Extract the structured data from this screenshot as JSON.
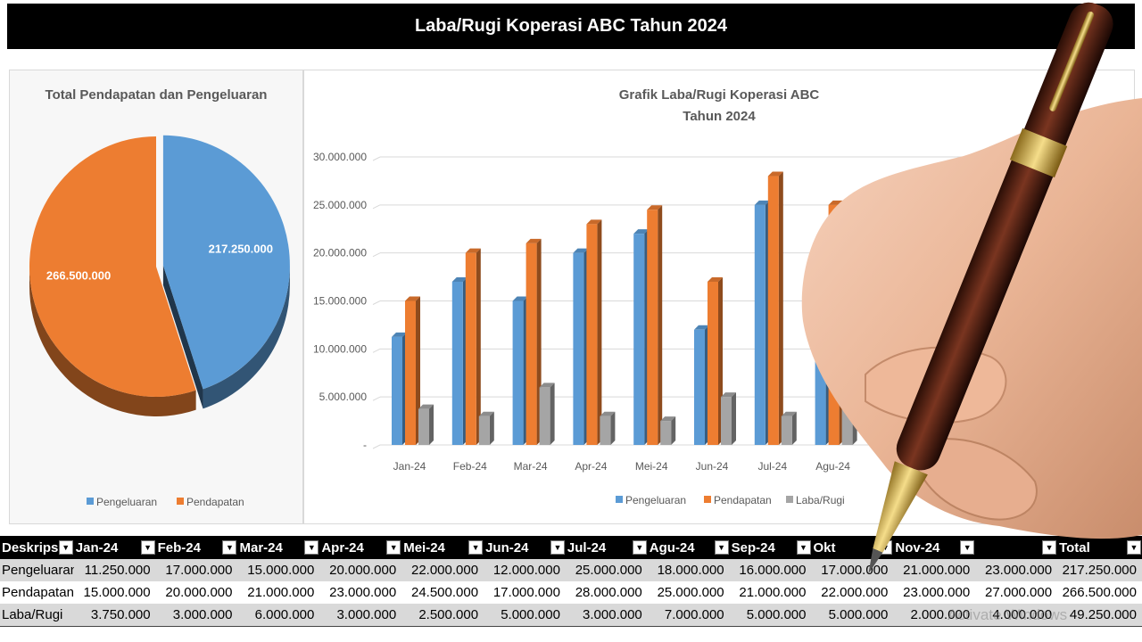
{
  "page_title": "Laba/Rugi Koperasi ABC Tahun 2024",
  "colors": {
    "pengeluaran": "#5b9bd5",
    "pendapatan": "#ed7d31",
    "laba_rugi": "#a5a5a5"
  },
  "chart_data": [
    {
      "type": "pie",
      "title": "Total Pendapatan dan Pengeluaran",
      "labels": [
        "Pengeluaran",
        "Pendapatan"
      ],
      "values": [
        217250000,
        266500000
      ],
      "data_labels": [
        "217.250.000",
        "266.500.000"
      ],
      "legend": "bottom",
      "style": "3d"
    },
    {
      "type": "bar",
      "title": "Grafik Laba/Rugi Koperasi ABC",
      "subtitle": "Tahun 2024",
      "categories": [
        "Jan-24",
        "Feb-24",
        "Mar-24",
        "Apr-24",
        "Mei-24",
        "Jun-24",
        "Jul-24",
        "Agu-24"
      ],
      "series": [
        {
          "name": "Pengeluaran",
          "values": [
            11250000,
            17000000,
            15000000,
            20000000,
            22000000,
            12000000,
            25000000,
            18000000
          ]
        },
        {
          "name": "Pendapatan",
          "values": [
            15000000,
            20000000,
            21000000,
            23000000,
            24500000,
            17000000,
            28000000,
            25000000
          ]
        },
        {
          "name": "Laba/Rugi",
          "values": [
            3750000,
            3000000,
            6000000,
            3000000,
            2500000,
            5000000,
            3000000,
            7000000
          ]
        }
      ],
      "ylim": [
        0,
        30000000
      ],
      "yticks": [
        "30.000.000",
        "25.000.000",
        "20.000.000",
        "15.000.000",
        "10.000.000",
        "5.000.000",
        "-"
      ],
      "grid": true,
      "legend": "bottom",
      "style": "3d"
    }
  ],
  "table": {
    "headers": [
      "Deskripsi",
      "Jan-24",
      "Feb-24",
      "Mar-24",
      "Apr-24",
      "Mei-24",
      "Jun-24",
      "Jul-24",
      "Agu-24",
      "Sep-24",
      "Okt",
      "Nov-24",
      "",
      "Total"
    ],
    "rows": [
      [
        "Pengeluaran",
        "11.250.000",
        "17.000.000",
        "15.000.000",
        "20.000.000",
        "22.000.000",
        "12.000.000",
        "25.000.000",
        "18.000.000",
        "16.000.000",
        "17.000.000",
        "21.000.000",
        "23.000.000",
        "217.250.000"
      ],
      [
        "Pendapatan",
        "15.000.000",
        "20.000.000",
        "21.000.000",
        "23.000.000",
        "24.500.000",
        "17.000.000",
        "28.000.000",
        "25.000.000",
        "21.000.000",
        "22.000.000",
        "23.000.000",
        "27.000.000",
        "266.500.000"
      ],
      [
        "Laba/Rugi",
        "3.750.000",
        "3.000.000",
        "6.000.000",
        "3.000.000",
        "2.500.000",
        "5.000.000",
        "3.000.000",
        "7.000.000",
        "5.000.000",
        "5.000.000",
        "2.000.000",
        "4.000.000",
        "49.250.000"
      ]
    ]
  },
  "watermark": "Activate Windows"
}
